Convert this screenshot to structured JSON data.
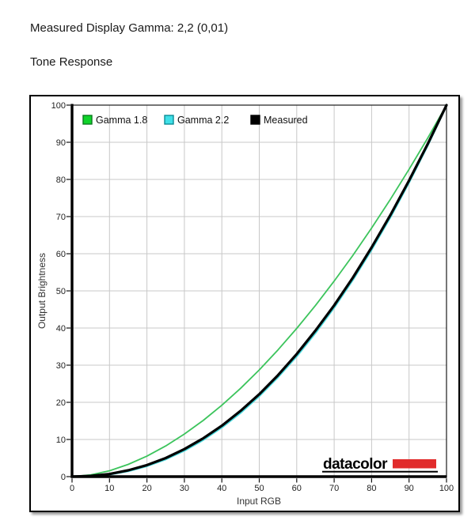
{
  "page": {
    "measured_gamma_line": "Measured Display Gamma: 2,2 (0,01)",
    "section_heading": "Tone Response"
  },
  "chart_data": {
    "type": "line",
    "title": "Tone Response",
    "xlabel": "Input RGB",
    "ylabel": "Output Brightness",
    "xlim": [
      0,
      100
    ],
    "ylim": [
      0,
      100
    ],
    "x_ticks": [
      0,
      10,
      20,
      30,
      40,
      50,
      60,
      70,
      80,
      90,
      100
    ],
    "y_ticks": [
      0,
      10,
      20,
      30,
      40,
      50,
      60,
      70,
      80,
      90,
      100
    ],
    "grid": true,
    "grid_color": "#c8c8c8",
    "legend_position": "top-left inside plot",
    "x": [
      0,
      5,
      10,
      15,
      20,
      25,
      30,
      35,
      40,
      45,
      50,
      55,
      60,
      65,
      70,
      75,
      80,
      85,
      90,
      95,
      100
    ],
    "series": [
      {
        "name": "Gamma 1.8",
        "color": "#3cc45c",
        "marker_fill": "#0fd42a",
        "marker_border": "#0a7a1e",
        "stroke_width": 1.8,
        "values": [
          0,
          0.46,
          1.58,
          3.29,
          5.52,
          8.25,
          11.46,
          15.11,
          19.22,
          23.76,
          28.72,
          34.1,
          39.89,
          46.05,
          52.63,
          59.58,
          66.92,
          74.64,
          82.73,
          91.18,
          100
        ]
      },
      {
        "name": "Gamma 2.2",
        "color": "#47d8dc",
        "marker_fill": "#3fe0e8",
        "marker_border": "#0b8c96",
        "stroke_width": 3,
        "values": [
          0,
          0.14,
          0.63,
          1.54,
          2.9,
          4.73,
          7.07,
          9.93,
          13.32,
          17.25,
          21.76,
          26.85,
          32.5,
          38.76,
          45.62,
          53.11,
          61.21,
          69.94,
          79.31,
          89.33,
          100
        ]
      },
      {
        "name": "Measured",
        "color": "#000000",
        "marker_fill": "#000000",
        "marker_border": "#000000",
        "stroke_width": 3.2,
        "values": [
          0,
          0.2,
          0.7,
          1.7,
          3.1,
          5.0,
          7.4,
          10.3,
          13.7,
          17.7,
          22.2,
          27.3,
          33.0,
          39.3,
          46.1,
          53.6,
          61.7,
          70.4,
          79.7,
          89.6,
          100
        ]
      }
    ],
    "branding": {
      "logo_text": "datacolor",
      "logo_color": "#e12b2b"
    }
  }
}
